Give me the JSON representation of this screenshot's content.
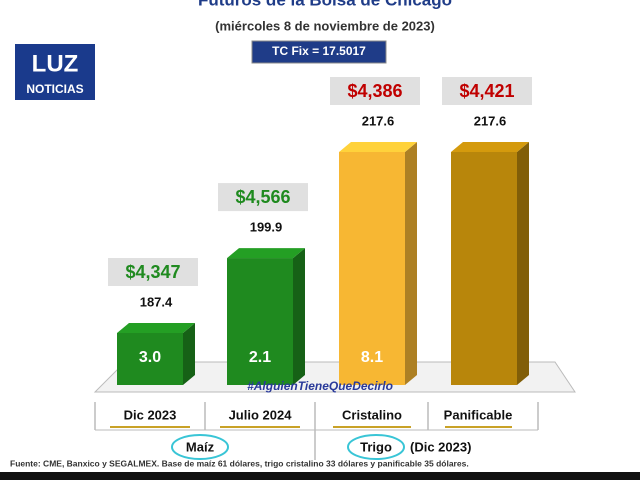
{
  "chart_data": {
    "type": "bar",
    "title": "Futuros de la Bolsa de Chicago",
    "subtitle": "(miércoles 8 de noviembre de 2023)",
    "exchange_rate": "TC Fix = 17.5017",
    "logo": [
      "LUZ",
      "NOTICIAS"
    ],
    "categories": [
      "Dic 2023",
      "Julio 2024",
      "Cristalino",
      "Panificable"
    ],
    "values": [
      187.4,
      199.9,
      217.6,
      217.6
    ],
    "colors": [
      "#1f8a1f",
      "#1f8a1f",
      "#f7b733",
      "#b8860b"
    ],
    "price_labels": [
      "$4,347",
      "$4,566",
      "$4,386",
      "$4,421"
    ],
    "price_colors": [
      "#1f8a1f",
      "#1f8a1f",
      "#c00000",
      "#c00000"
    ],
    "change_labels": [
      "3.0",
      "2.1",
      "8.1",
      null
    ],
    "groups": [
      {
        "name": "Maíz"
      },
      {
        "name": "Trigo",
        "note": "(Dic 2023)"
      }
    ],
    "watermark": "#AlguienTieneQueDecirlo",
    "source": "Fuente: CME, Banxico y SEGALMEX. Base de maíz 61 dólares, trigo cristalino 33 dólares y panificable 35 dólares."
  }
}
